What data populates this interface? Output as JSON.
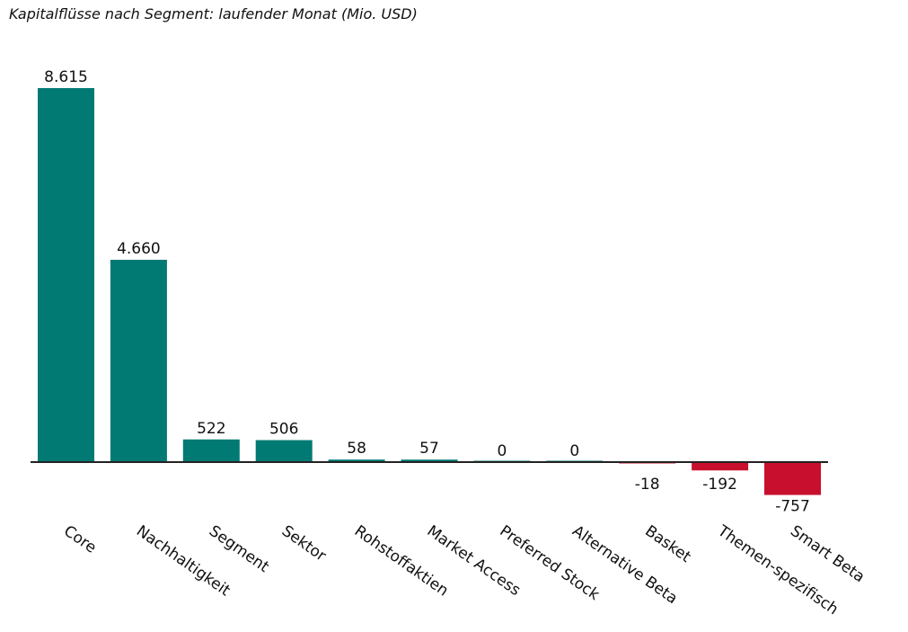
{
  "title": "Kapitalflüsse nach Segment: laufender Monat (Mio. USD)",
  "chart_data": {
    "type": "bar",
    "title": "Kapitalflüsse nach Segment: laufender Monat (Mio. USD)",
    "xlabel": "",
    "ylabel": "",
    "grid": false,
    "ylim": [
      -757,
      8615
    ],
    "categories": [
      "Core",
      "Nachhaltigkeit",
      "Segment",
      "Sektor",
      "Rohstoffaktien",
      "Market Access",
      "Preferred Stock",
      "Alternative Beta",
      "Basket",
      "Themen-spezifisch",
      "Smart Beta"
    ],
    "values": [
      8615,
      4660,
      522,
      506,
      58,
      57,
      0,
      0,
      -18,
      -192,
      -757
    ],
    "value_labels": [
      "8.615",
      "4.660",
      "522",
      "506",
      "58",
      "57",
      "0",
      "0",
      "-18",
      "-192",
      "-757"
    ],
    "colors": {
      "positive": "#007a73",
      "negative": "#c8102e",
      "axis": "#222222"
    }
  }
}
